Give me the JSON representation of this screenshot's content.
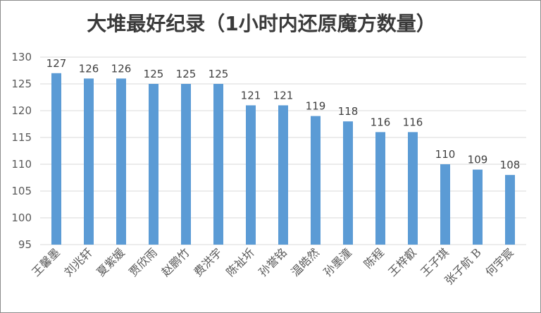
{
  "chart_data": {
    "type": "bar",
    "title": "大堆最好纪录（1小时内还原魔方数量）",
    "xlabel": "",
    "ylabel": "",
    "ylim": [
      95,
      130
    ],
    "yticks": [
      95,
      100,
      105,
      110,
      115,
      120,
      125,
      130
    ],
    "grid": true,
    "legend": "none",
    "bar_color": "#5b9bd5",
    "categories": [
      "王馨墨",
      "刘兆轩",
      "夏紫媛",
      "贾欣雨",
      "赵鹏竹",
      "费洪宇",
      "陈祉圻",
      "孙誉铭",
      "温皓然",
      "孙墨潼",
      "陈程",
      "王梓叡",
      "王子琪",
      "张子航 B",
      "何宇宸"
    ],
    "values": [
      127,
      126,
      126,
      125,
      125,
      125,
      121,
      121,
      119,
      118,
      116,
      116,
      110,
      109,
      108
    ]
  }
}
